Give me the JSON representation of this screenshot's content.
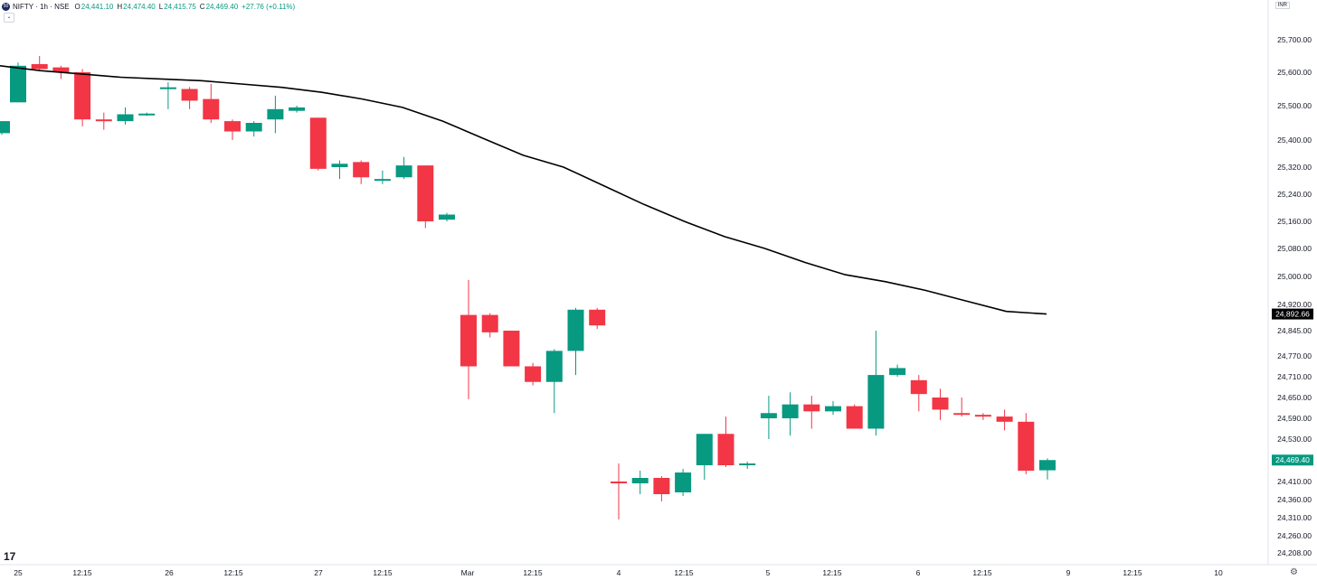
{
  "header": {
    "symbol": "NIFTY · 1h · NSE",
    "logo_text": "50",
    "open_label": "O",
    "open_value": "24,441.10",
    "high_label": "H",
    "high_value": "24,474.40",
    "low_label": "L",
    "low_value": "24,415.75",
    "close_label": "C",
    "close_value": "24,469.40",
    "change": "+27.76 (+0.11%)",
    "collapse_glyph": "⌄",
    "currency_label": "INR"
  },
  "icons": {
    "collapse": "chevron-down-icon",
    "tradingview_logo": "tradingview-logo-icon",
    "settings": "gear-icon"
  },
  "tv_logo_glyph": "17",
  "gear_glyph": "⚙",
  "colors": {
    "up": "#089981",
    "down": "#f23645",
    "ma_line": "#000000",
    "current_price_bg": "#089981",
    "ma_label_bg": "#000000"
  },
  "chart_data": {
    "type": "candlestick",
    "symbol": "NIFTY",
    "interval": "1h",
    "exchange": "NSE",
    "ylim": [
      24208,
      25760
    ],
    "y_axis_ticks": [
      "25,700.00",
      "25,600.00",
      "25,500.00",
      "25,400.00",
      "25,320.00",
      "25,240.00",
      "25,160.00",
      "25,080.00",
      "25,000.00",
      "24,920.00",
      "24,845.00",
      "24,770.00",
      "24,710.00",
      "24,650.00",
      "24,590.00",
      "24,530.00",
      "24,470.00",
      "24,410.00",
      "24,360.00",
      "24,310.00",
      "24,260.00",
      "24,208.00"
    ],
    "x_axis_ticks": [
      "25",
      "12:15",
      "26",
      "12:15",
      "27",
      "12:15",
      "Mar",
      "12:15",
      "4",
      "12:15",
      "5",
      "12:15",
      "6",
      "12:15",
      "9",
      "12:15",
      "10"
    ],
    "candles": [
      {
        "o": 25420,
        "h": 25455,
        "l": 25415,
        "c": 25455
      },
      {
        "o": 25510,
        "h": 25630,
        "l": 25510,
        "c": 25620
      },
      {
        "o": 25625,
        "h": 25650,
        "l": 25605,
        "c": 25610
      },
      {
        "o": 25615,
        "h": 25620,
        "l": 25580,
        "c": 25600
      },
      {
        "o": 25600,
        "h": 25610,
        "l": 25440,
        "c": 25460
      },
      {
        "o": 25460,
        "h": 25480,
        "l": 25430,
        "c": 25455
      },
      {
        "o": 25455,
        "h": 25495,
        "l": 25445,
        "c": 25475
      },
      {
        "o": 25475,
        "h": 25480,
        "l": 25470,
        "c": 25477
      },
      {
        "o": 25550,
        "h": 25570,
        "l": 25490,
        "c": 25555
      },
      {
        "o": 25550,
        "h": 25556,
        "l": 25490,
        "c": 25515
      },
      {
        "o": 25520,
        "h": 25565,
        "l": 25450,
        "c": 25460
      },
      {
        "o": 25455,
        "h": 25460,
        "l": 25400,
        "c": 25425
      },
      {
        "o": 25425,
        "h": 25455,
        "l": 25410,
        "c": 25450
      },
      {
        "o": 25460,
        "h": 25530,
        "l": 25420,
        "c": 25490
      },
      {
        "o": 25485,
        "h": 25500,
        "l": 25480,
        "c": 25495
      },
      {
        "o": 25465,
        "h": 25465,
        "l": 25310,
        "c": 25315
      },
      {
        "o": 25320,
        "h": 25340,
        "l": 25285,
        "c": 25330
      },
      {
        "o": 25335,
        "h": 25340,
        "l": 25270,
        "c": 25290
      },
      {
        "o": 25285,
        "h": 25310,
        "l": 25270,
        "c": 25285
      },
      {
        "o": 25290,
        "h": 25350,
        "l": 25285,
        "c": 25325
      },
      {
        "o": 25325,
        "h": 25325,
        "l": 25140,
        "c": 25160
      },
      {
        "o": 25165,
        "h": 25185,
        "l": 25160,
        "c": 25180
      },
      {
        "o": 24890,
        "h": 24990,
        "l": 24645,
        "c": 24740
      },
      {
        "o": 24890,
        "h": 24895,
        "l": 24825,
        "c": 24840
      },
      {
        "o": 24845,
        "h": 24845,
        "l": 24740,
        "c": 24740
      },
      {
        "o": 24740,
        "h": 24750,
        "l": 24685,
        "c": 24695
      },
      {
        "o": 24695,
        "h": 24790,
        "l": 24605,
        "c": 24785
      },
      {
        "o": 24785,
        "h": 24910,
        "l": 24715,
        "c": 24905
      },
      {
        "o": 24905,
        "h": 24910,
        "l": 24850,
        "c": 24860
      },
      {
        "o": 24410,
        "h": 24460,
        "l": 24305,
        "c": 24405
      },
      {
        "o": 24405,
        "h": 24440,
        "l": 24375,
        "c": 24420
      },
      {
        "o": 24420,
        "h": 24425,
        "l": 24355,
        "c": 24375
      },
      {
        "o": 24380,
        "h": 24445,
        "l": 24370,
        "c": 24435
      },
      {
        "o": 24455,
        "h": 24545,
        "l": 24415,
        "c": 24545
      },
      {
        "o": 24545,
        "h": 24595,
        "l": 24450,
        "c": 24455
      },
      {
        "o": 24455,
        "h": 24465,
        "l": 24445,
        "c": 24460
      },
      {
        "o": 24590,
        "h": 24655,
        "l": 24530,
        "c": 24605
      },
      {
        "o": 24590,
        "h": 24665,
        "l": 24540,
        "c": 24630
      },
      {
        "o": 24630,
        "h": 24655,
        "l": 24560,
        "c": 24610
      },
      {
        "o": 24610,
        "h": 24640,
        "l": 24600,
        "c": 24625
      },
      {
        "o": 24625,
        "h": 24630,
        "l": 24560,
        "c": 24560
      },
      {
        "o": 24560,
        "h": 24845,
        "l": 24540,
        "c": 24715
      },
      {
        "o": 24715,
        "h": 24745,
        "l": 24710,
        "c": 24735
      },
      {
        "o": 24700,
        "h": 24715,
        "l": 24610,
        "c": 24660
      },
      {
        "o": 24650,
        "h": 24675,
        "l": 24585,
        "c": 24615
      },
      {
        "o": 24605,
        "h": 24650,
        "l": 24595,
        "c": 24600
      },
      {
        "o": 24600,
        "h": 24605,
        "l": 24585,
        "c": 24595
      },
      {
        "o": 24595,
        "h": 24615,
        "l": 24555,
        "c": 24580
      },
      {
        "o": 24580,
        "h": 24605,
        "l": 24430,
        "c": 24440
      },
      {
        "o": 24441.1,
        "h": 24474.4,
        "l": 24415.75,
        "c": 24469.4
      }
    ],
    "moving_average": {
      "values": [
        25620,
        25605,
        25595,
        25585,
        25580,
        25575,
        25565,
        25555,
        25540,
        25520,
        25495,
        25455,
        25405,
        25355,
        25320,
        25265,
        25210,
        25160,
        25115,
        25080,
        25040,
        25005,
        24985,
        24960,
        24930,
        24900,
        24892.66
      ],
      "last_value_label": "24,892.66"
    },
    "current_price_label": "24,469.40",
    "grid": false
  }
}
